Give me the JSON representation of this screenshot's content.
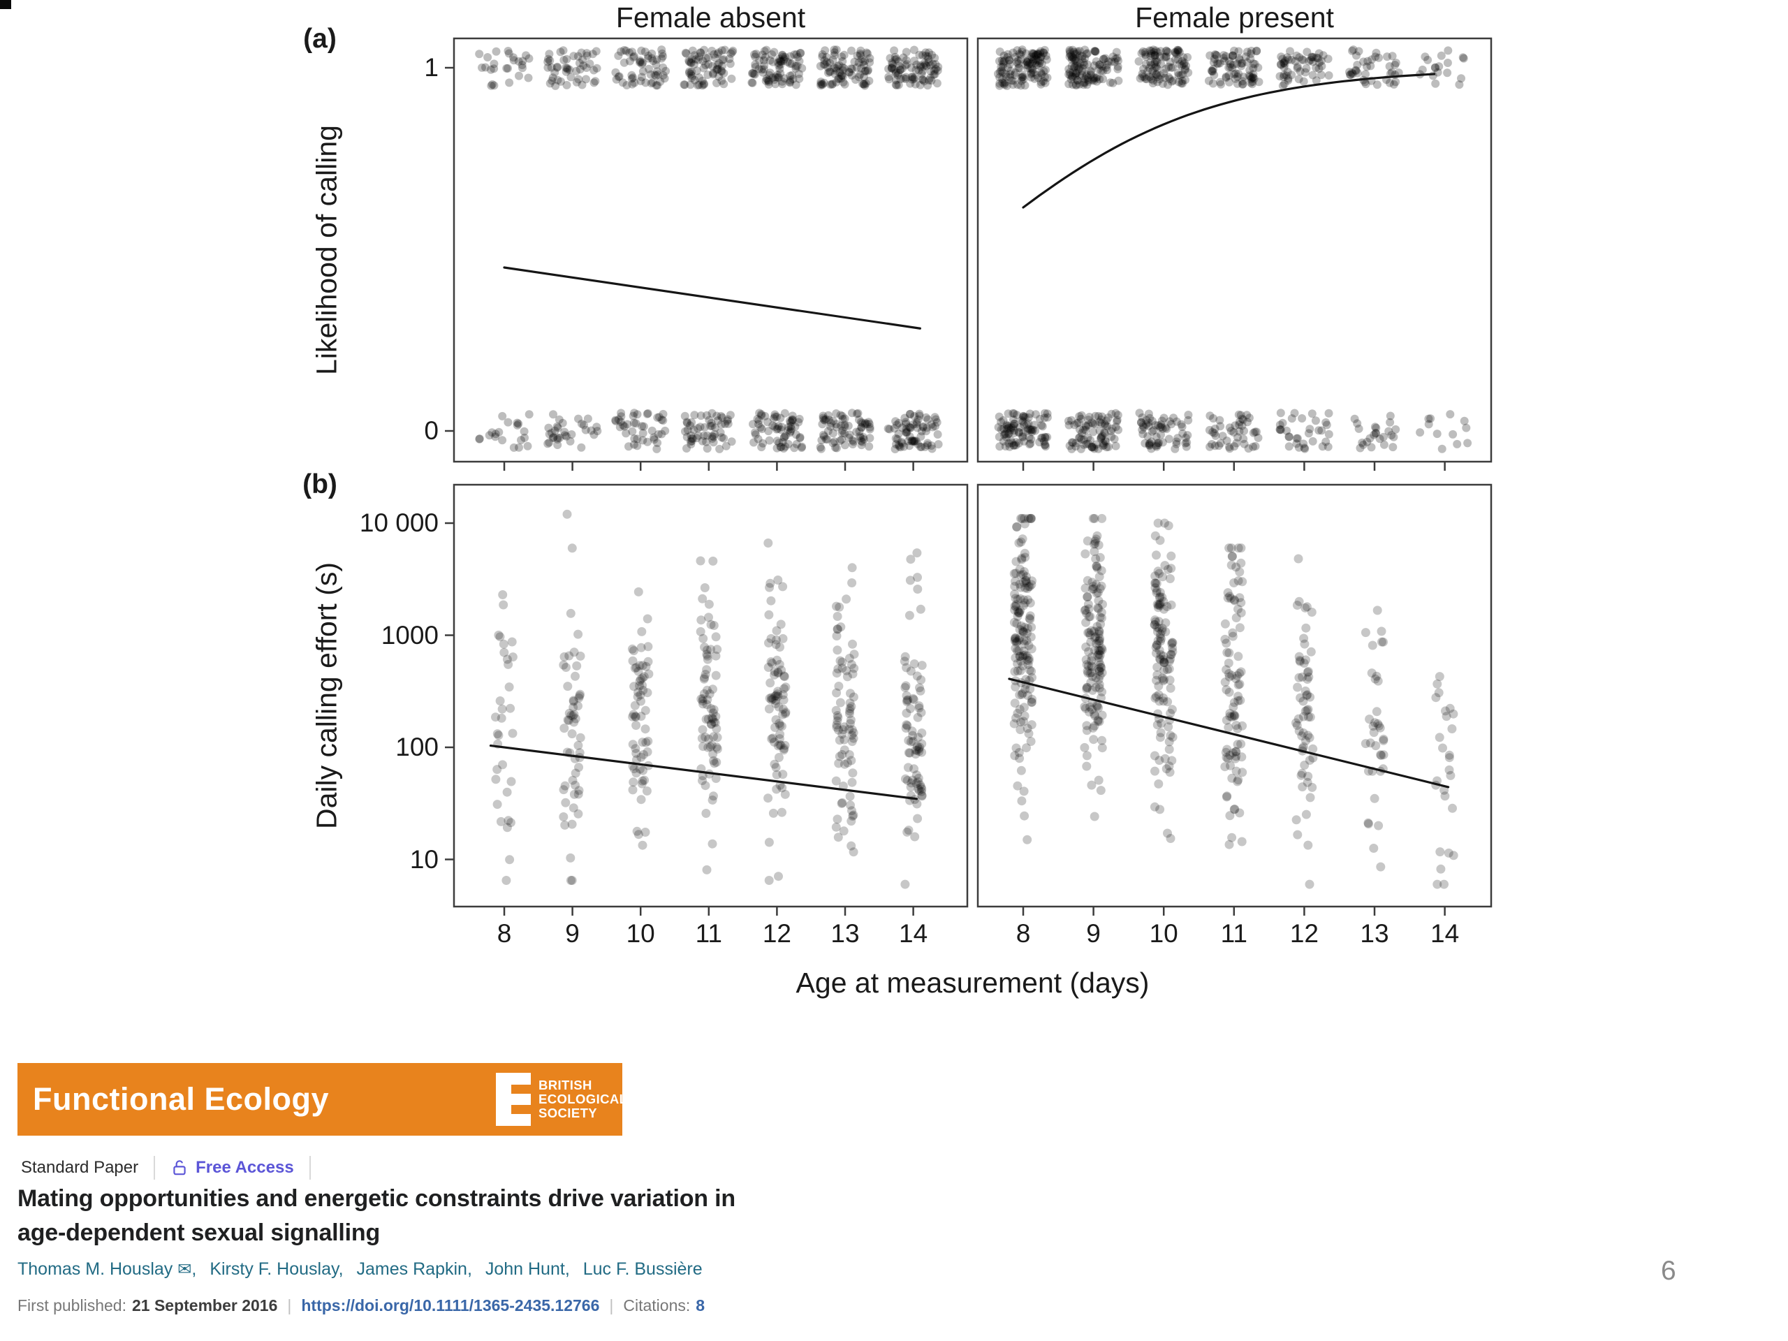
{
  "page_number": "6",
  "journal": {
    "name": "Functional Ecology",
    "society": [
      "BRITISH",
      "ECOLOGICAL",
      "SOCIETY"
    ],
    "banner_color": "#E8831D"
  },
  "article": {
    "type_label": "Standard Paper",
    "access_label": "Free Access",
    "access_color": "#5B55D7",
    "title_line1": "Mating opportunities and energetic constraints drive variation in",
    "title_line2": "age-dependent sexual signalling",
    "authors": [
      {
        "name": "Thomas M. Houslay",
        "email_icon": true
      },
      {
        "name": "Kirsty F. Houslay"
      },
      {
        "name": "James Rapkin"
      },
      {
        "name": "John Hunt"
      },
      {
        "name": "Luc F. Bussière"
      }
    ],
    "author_link_color": "#226b84",
    "first_published_label": "First published:",
    "first_published_date": "21 September 2016",
    "doi": "https://doi.org/10.1111/1365-2435.12766",
    "doi_color": "#3a67a8",
    "citations_label": "Citations:",
    "citations_count": "8"
  },
  "figure": {
    "panel_label_a": "(a)",
    "panel_label_b": "(b)",
    "col_titles": [
      "Female absent",
      "Female present"
    ],
    "ylabel_top": "Likelihood of calling",
    "ylabel_bottom": "Daily calling effort (s)",
    "yticks_top": [
      "1",
      "0"
    ],
    "yticks_bottom": [
      "10 000",
      "1000",
      "100",
      "10"
    ],
    "xticks": [
      "8",
      "9",
      "10",
      "11",
      "12",
      "13",
      "14"
    ],
    "xlabel": "Age at measurement (days)"
  },
  "chart_data": {
    "type": "scatter",
    "layout": "2 columns (Female absent | Female present) x 2 rows",
    "xlabel": "Age at measurement (days)",
    "x_ticks": [
      8,
      9,
      10,
      11,
      12,
      13,
      14
    ],
    "point_style": {
      "color": "#000000",
      "alpha": 0.24,
      "jittered": true
    },
    "row_a": {
      "ylabel": "Likelihood of calling",
      "y_ticks": [
        1,
        0
      ],
      "description": "Binary calling outcome (1 = called, 0 = did not call), points jittered around 0 and 1",
      "panels": [
        {
          "condition": "Female absent",
          "ages": [
            8,
            9,
            10,
            11,
            12,
            13,
            14
          ],
          "n_calling_by_age": [
            26,
            48,
            58,
            72,
            82,
            86,
            86
          ],
          "n_not_calling_by_age": [
            20,
            32,
            42,
            56,
            66,
            72,
            72
          ],
          "trend": {
            "type": "linear",
            "x": [
              8,
              14.1
            ],
            "p_at_8": 0.45,
            "p_at_14": 0.285
          }
        },
        {
          "condition": "Female present",
          "ages": [
            8,
            9,
            10,
            11,
            12,
            13,
            14
          ],
          "n_calling_by_age": [
            120,
            112,
            100,
            78,
            56,
            40,
            18
          ],
          "n_not_calling_by_age": [
            92,
            82,
            62,
            46,
            34,
            24,
            12
          ],
          "trend": {
            "type": "logistic",
            "logit_intercept": -4.41,
            "logit_slope": 0.61,
            "x_range": [
              8,
              13.85
            ],
            "p_points": [
              [
                8,
                0.62
              ],
              [
                10,
                0.82
              ],
              [
                12,
                0.95
              ],
              [
                13.85,
                0.97
              ]
            ]
          }
        }
      ]
    },
    "row_b": {
      "ylabel": "Daily calling effort (s)",
      "y_scale": "log10",
      "y_ticks": [
        10000,
        1000,
        100,
        10
      ],
      "y_tick_labels": [
        "10 000",
        "1000",
        "100",
        "10"
      ],
      "panels": [
        {
          "condition": "Female absent",
          "columns": [
            {
              "age": 8,
              "n": 32,
              "log_mean": 2.05,
              "log_sd": 0.62,
              "min": 6.5,
              "max": 5000
            },
            {
              "age": 9,
              "n": 55,
              "log_mean": 2.2,
              "log_sd": 0.6,
              "min": 6.5,
              "max": 12000
            },
            {
              "age": 10,
              "n": 65,
              "log_mean": 2.25,
              "log_sd": 0.6,
              "min": 6.5,
              "max": 9000
            },
            {
              "age": 11,
              "n": 75,
              "log_mean": 2.3,
              "log_sd": 0.6,
              "min": 6.5,
              "max": 13000
            },
            {
              "age": 12,
              "n": 80,
              "log_mean": 2.25,
              "log_sd": 0.6,
              "min": 6.5,
              "max": 14000
            },
            {
              "age": 13,
              "n": 80,
              "log_mean": 2.2,
              "log_sd": 0.6,
              "min": 6.5,
              "max": 7000
            },
            {
              "age": 14,
              "n": 80,
              "log_mean": 2.1,
              "log_sd": 0.65,
              "min": 6.0,
              "max": 7000
            }
          ],
          "trend": {
            "type": "linear_on_log_scale",
            "x": [
              7.8,
              14.05
            ],
            "y_at_8": 100,
            "y_at_14": 35
          }
        },
        {
          "condition": "Female present",
          "columns": [
            {
              "age": 8,
              "n": 150,
              "log_mean": 3.0,
              "log_sd": 0.62,
              "min": 6,
              "max": 11000
            },
            {
              "age": 9,
              "n": 140,
              "log_mean": 2.85,
              "log_sd": 0.65,
              "min": 6,
              "max": 11000
            },
            {
              "age": 10,
              "n": 120,
              "log_mean": 2.75,
              "log_sd": 0.65,
              "min": 6,
              "max": 10000
            },
            {
              "age": 11,
              "n": 92,
              "log_mean": 2.55,
              "log_sd": 0.65,
              "min": 6,
              "max": 6000
            },
            {
              "age": 12,
              "n": 62,
              "log_mean": 2.35,
              "log_sd": 0.6,
              "min": 6,
              "max": 5000
            },
            {
              "age": 13,
              "n": 36,
              "log_mean": 2.1,
              "log_sd": 0.55,
              "min": 6,
              "max": 2500
            },
            {
              "age": 14,
              "n": 26,
              "log_mean": 1.9,
              "log_sd": 0.6,
              "min": 6,
              "max": 1500
            }
          ],
          "trend": {
            "type": "linear_on_log_scale",
            "x": [
              7.8,
              14.05
            ],
            "y_at_8": 380,
            "y_at_14": 45
          }
        }
      ]
    }
  }
}
